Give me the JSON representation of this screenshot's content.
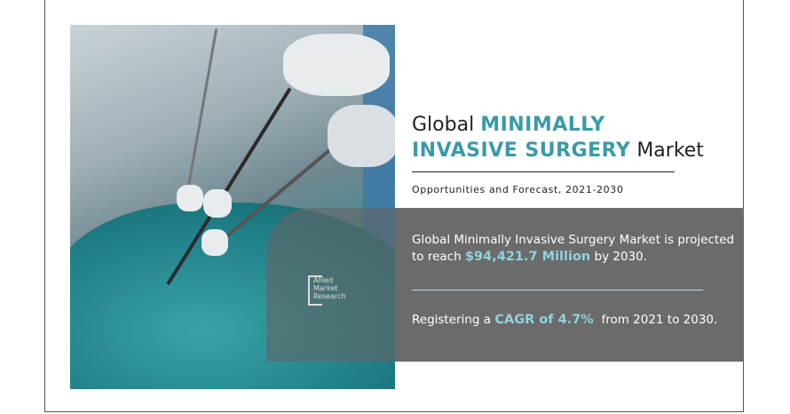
{
  "header": {
    "title_prefix": "Global",
    "title_highlight_1": "MINIMALLY",
    "title_highlight_2": "INVASIVE SURGERY",
    "title_suffix": "Market",
    "subtitle": "Opportunities and Forecast, 2021-2030"
  },
  "stats": {
    "line1_text": "Global Minimally Invasive Surgery Market is projected",
    "line2_prefix": "to reach",
    "value": "$94,421.7 Million",
    "line2_suffix": "by 2030.",
    "cagr_prefix": "Registering a",
    "cagr": "CAGR of 4.7%",
    "cagr_suffix": "from 2021 to 2030."
  },
  "logo": {
    "line1": "Allied",
    "line2": "Market",
    "line3": "Research"
  },
  "colors": {
    "accent": "#3a9aa8",
    "highlight": "#8fd3dc",
    "panel": "#6b6b6b"
  }
}
